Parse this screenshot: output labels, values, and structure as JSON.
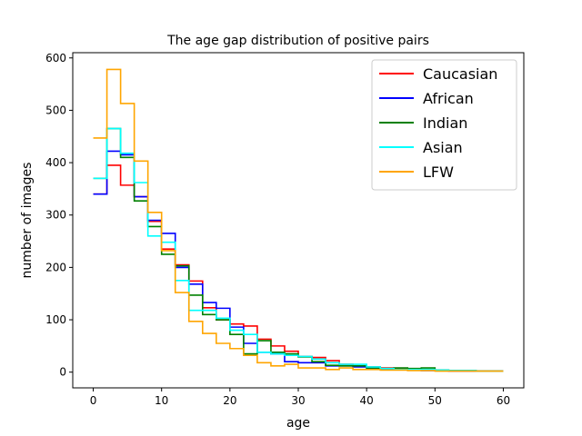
{
  "chart_data": {
    "type": "line",
    "drawstyle": "steps-post",
    "title": "The age gap distribution of positive pairs",
    "xlabel": "age",
    "ylabel": "number of images",
    "xlim": [
      -3,
      63
    ],
    "ylim": [
      -30,
      610
    ],
    "xticks": [
      0,
      10,
      20,
      30,
      40,
      50,
      60
    ],
    "yticks": [
      0,
      100,
      200,
      300,
      400,
      500,
      600
    ],
    "legend_position": "upper right",
    "x": [
      0,
      2,
      4,
      6,
      8,
      10,
      12,
      14,
      16,
      18,
      20,
      22,
      24,
      26,
      28,
      30,
      32,
      34,
      36,
      38,
      40,
      42,
      44,
      46,
      48,
      50,
      52,
      54,
      56,
      58,
      60
    ],
    "series": [
      {
        "name": "Caucasian",
        "color": "#ff0000",
        "values": [
          340,
          395,
          357,
          335,
          288,
          235,
          205,
          174,
          123,
          100,
          92,
          88,
          63,
          50,
          40,
          30,
          28,
          22,
          15,
          12,
          10,
          8,
          7,
          6,
          5,
          4,
          3,
          3,
          2,
          2,
          2
        ]
      },
      {
        "name": "African",
        "color": "#0000ff",
        "values": [
          340,
          422,
          415,
          335,
          290,
          265,
          200,
          168,
          133,
          122,
          86,
          55,
          38,
          35,
          20,
          18,
          18,
          12,
          12,
          10,
          6,
          5,
          5,
          4,
          3,
          3,
          2,
          2,
          2,
          2,
          2
        ]
      },
      {
        "name": "Indian",
        "color": "#008000",
        "values": [
          370,
          465,
          410,
          327,
          278,
          225,
          203,
          147,
          110,
          100,
          72,
          35,
          60,
          38,
          35,
          29,
          20,
          13,
          12,
          12,
          8,
          7,
          8,
          7,
          8,
          4,
          3,
          3,
          2,
          2,
          2
        ]
      },
      {
        "name": "Asian",
        "color": "#00ffff",
        "values": [
          370,
          465,
          418,
          362,
          260,
          248,
          175,
          118,
          118,
          103,
          80,
          72,
          38,
          35,
          32,
          30,
          25,
          18,
          15,
          15,
          10,
          7,
          5,
          5,
          5,
          4,
          3,
          3,
          2,
          2,
          2
        ]
      },
      {
        "name": "LFW",
        "color": "#ffa500",
        "values": [
          447,
          578,
          513,
          403,
          305,
          232,
          152,
          97,
          74,
          55,
          45,
          32,
          18,
          12,
          15,
          8,
          8,
          5,
          8,
          5,
          5,
          4,
          4,
          3,
          3,
          2,
          2,
          2,
          2,
          2,
          2
        ]
      }
    ]
  }
}
